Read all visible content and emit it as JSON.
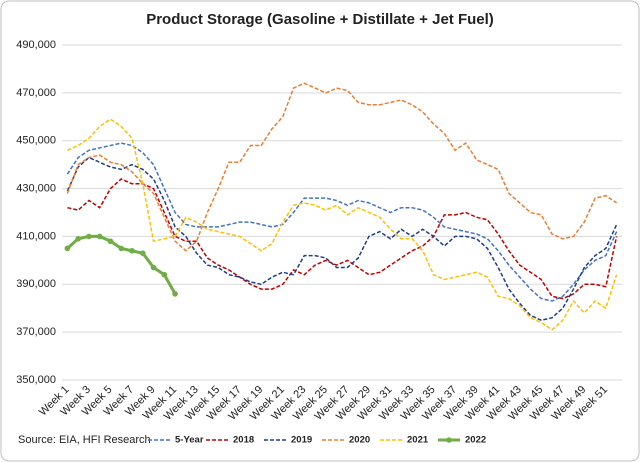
{
  "chart_data": {
    "type": "line",
    "title": "Product Storage (Gasoline + Distillate + Jet Fuel)",
    "source": "Source: EIA, HFI Research",
    "categories": [
      "Week 1",
      null,
      "Week 3",
      null,
      "Week 5",
      null,
      "Week 7",
      null,
      "Week 9",
      null,
      "Week 11",
      null,
      "Week 13",
      null,
      "Week 15",
      null,
      "Week 17",
      null,
      "Week 19",
      null,
      "Week 21",
      null,
      "Week 23",
      null,
      "Week 25",
      null,
      "Week 27",
      null,
      "Week 29",
      null,
      "Week 31",
      null,
      "Week 33",
      null,
      "Week 35",
      null,
      "Week 37",
      null,
      "Week 39",
      null,
      "Week 41",
      null,
      "Week 43",
      null,
      "Week 45",
      null,
      "Week 47",
      null,
      "Week 49",
      null,
      "Week 51",
      null
    ],
    "ylim": [
      350000,
      490000
    ],
    "yticks": [
      {
        "value": 350000,
        "label": "350,000"
      },
      {
        "value": 370000,
        "label": "370,000"
      },
      {
        "value": 390000,
        "label": "390,000"
      },
      {
        "value": 410000,
        "label": "410,000"
      },
      {
        "value": 430000,
        "label": "430,000"
      },
      {
        "value": 450000,
        "label": "450,000"
      },
      {
        "value": 470000,
        "label": "470,000"
      },
      {
        "value": 490000,
        "label": "490,000"
      }
    ],
    "grid": true,
    "legend": "bottom",
    "series": [
      {
        "name": "5-Year",
        "color": "#4472c4",
        "dashed": true,
        "values": [
          436000,
          443000,
          446000,
          447000,
          448000,
          449000,
          448000,
          445000,
          440000,
          430000,
          420000,
          415000,
          414000,
          414000,
          414000,
          415000,
          416000,
          416000,
          415000,
          414000,
          415000,
          420000,
          426000,
          426000,
          426000,
          425000,
          423000,
          425000,
          424000,
          422000,
          420000,
          422000,
          422000,
          421000,
          418000,
          414000,
          413000,
          412000,
          411000,
          409000,
          404000,
          398000,
          393000,
          388000,
          384000,
          383000,
          385000,
          390000,
          396000,
          400000,
          402000,
          412000
        ]
      },
      {
        "name": "2018",
        "color": "#c00000",
        "dashed": true,
        "values": [
          422000,
          421000,
          425000,
          422000,
          430000,
          434000,
          432000,
          432000,
          430000,
          420000,
          410000,
          408000,
          408000,
          401000,
          398000,
          396000,
          393000,
          390000,
          388000,
          388000,
          390000,
          396000,
          394000,
          398000,
          400000,
          398000,
          400000,
          397000,
          394000,
          395000,
          398000,
          401000,
          404000,
          406000,
          410000,
          419000,
          419000,
          420000,
          418000,
          417000,
          411000,
          404000,
          398000,
          395000,
          392000,
          385000,
          384000,
          386000,
          390000,
          390000,
          389000,
          410000
        ]
      },
      {
        "name": "2019",
        "color": "#1f3c88",
        "dashed": true,
        "values": [
          429000,
          439000,
          443000,
          441000,
          439000,
          438000,
          440000,
          438000,
          434000,
          425000,
          414000,
          410000,
          403000,
          398000,
          397000,
          394000,
          393000,
          391000,
          390000,
          393000,
          395000,
          394000,
          402000,
          402000,
          401000,
          397000,
          397000,
          401000,
          410000,
          412000,
          409000,
          413000,
          410000,
          413000,
          410000,
          406000,
          410000,
          410000,
          409000,
          405000,
          397000,
          388000,
          382000,
          377000,
          375000,
          376000,
          380000,
          388000,
          397000,
          402000,
          405000,
          415000
        ]
      },
      {
        "name": "2020",
        "color": "#ed7d31",
        "dashed": true,
        "values": [
          428000,
          440000,
          443000,
          444000,
          441000,
          440000,
          437000,
          432000,
          428000,
          418000,
          408000,
          404000,
          408000,
          420000,
          430000,
          441000,
          441000,
          448000,
          448000,
          455000,
          460000,
          472000,
          474000,
          472000,
          470000,
          472000,
          471000,
          466000,
          465000,
          465000,
          466000,
          467000,
          465000,
          462000,
          457000,
          453000,
          446000,
          449000,
          442000,
          440000,
          438000,
          428000,
          424000,
          420000,
          419000,
          411000,
          409000,
          410000,
          416000,
          426000,
          427000,
          424000
        ]
      },
      {
        "name": "2021",
        "color": "#ffc000",
        "dashed": true,
        "values": [
          446000,
          448000,
          451000,
          456000,
          459000,
          456000,
          451000,
          432000,
          408000,
          409000,
          410000,
          418000,
          416000,
          413000,
          412000,
          411000,
          410000,
          407000,
          404000,
          407000,
          416000,
          423000,
          424000,
          423000,
          421000,
          423000,
          419000,
          422000,
          420000,
          418000,
          413000,
          409000,
          409000,
          404000,
          394000,
          392000,
          393000,
          394000,
          395000,
          393000,
          385000,
          384000,
          381000,
          376000,
          374000,
          371000,
          375000,
          383000,
          378000,
          383000,
          380000,
          394000
        ]
      },
      {
        "name": "2022",
        "color": "#70ad47",
        "dashed": false,
        "markers": true,
        "values": [
          405000,
          409000,
          410000,
          410000,
          408000,
          405000,
          404000,
          403000,
          397000,
          394000,
          386000,
          null,
          null,
          null,
          null,
          null,
          null,
          null,
          null,
          null,
          null,
          null,
          null,
          null,
          null,
          null,
          null,
          null,
          null,
          null,
          null,
          null,
          null,
          null,
          null,
          null,
          null,
          null,
          null,
          null,
          null,
          null,
          null,
          null,
          null,
          null,
          null,
          null,
          null,
          null,
          null,
          null
        ]
      }
    ]
  }
}
